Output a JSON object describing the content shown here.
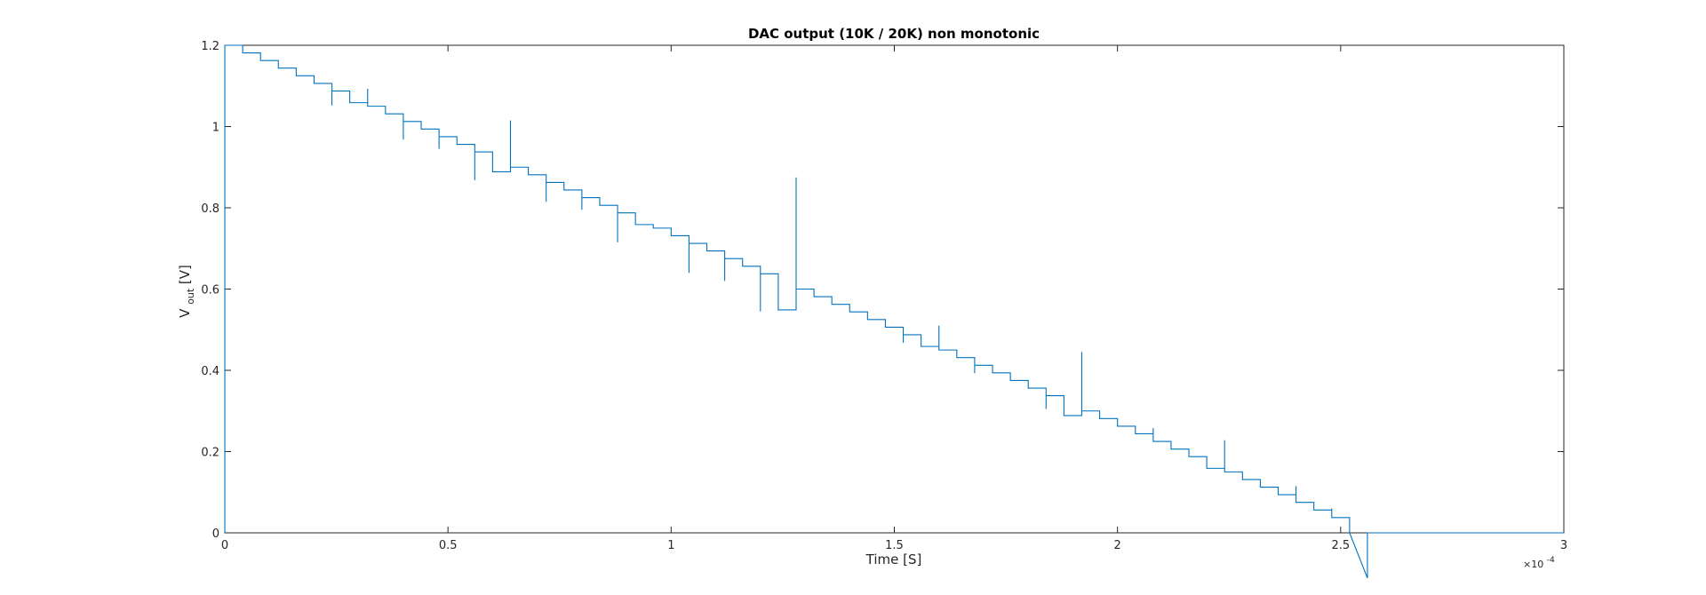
{
  "chart_data": {
    "type": "line",
    "title": "DAC output (10K / 20K) non monotonic",
    "xlabel": "Time [S]",
    "ylabel": {
      "main": "V",
      "subscript": "out",
      "unit": " [V]"
    },
    "x_exponent": {
      "base": "×10",
      "power": "-4"
    },
    "xlim": [
      0,
      3
    ],
    "ylim": [
      0,
      1.2
    ],
    "xticks": [
      0,
      0.5,
      1,
      1.5,
      2,
      2.5,
      3
    ],
    "xtick_labels": [
      "0",
      "0.5",
      "1",
      "1.5",
      "2",
      "2.5",
      "3"
    ],
    "yticks": [
      0,
      0.2,
      0.4,
      0.6,
      0.8,
      1,
      1.2
    ],
    "ytick_labels": [
      "0",
      "0.2",
      "0.4",
      "0.6",
      "0.8",
      "1",
      "1.2"
    ],
    "grid": false,
    "box": true,
    "series": [
      {
        "color": "#0072BD",
        "description": "Staircase from 1.2 V at t=0 down to 0 V at t≈2.56e-4 s, 64 steps of 0.01875 V every 0.04e-4 s, with glitch spikes at code transitions",
        "start_value": 1.2,
        "step_drop": 0.01875,
        "step_width": 0.04,
        "num_steps": 64,
        "level_offsets": [
          {
            "every_steps": 8,
            "offset": -0.01
          },
          {
            "every_steps": 16,
            "offset": -0.02
          },
          {
            "every_steps": 32,
            "offset": -0.04
          },
          {
            "every_steps": 64,
            "offset": -0.06
          }
        ],
        "spikes": [
          {
            "x": 0.08,
            "y": 1.165
          },
          {
            "x": 0.16,
            "y": 1.137
          },
          {
            "x": 0.24,
            "y": 1.052
          },
          {
            "x": 0.32,
            "y": 1.093
          },
          {
            "x": 0.4,
            "y": 0.968
          },
          {
            "x": 0.48,
            "y": 0.945
          },
          {
            "x": 0.56,
            "y": 0.868
          },
          {
            "x": 0.64,
            "y": 1.015
          },
          {
            "x": 0.72,
            "y": 0.815
          },
          {
            "x": 0.8,
            "y": 0.795
          },
          {
            "x": 0.88,
            "y": 0.715
          },
          {
            "x": 0.96,
            "y": 0.752
          },
          {
            "x": 1.04,
            "y": 0.64
          },
          {
            "x": 1.12,
            "y": 0.62
          },
          {
            "x": 1.2,
            "y": 0.545
          },
          {
            "x": 1.28,
            "y": 0.875
          },
          {
            "x": 1.36,
            "y": 0.568
          },
          {
            "x": 1.44,
            "y": 0.545
          },
          {
            "x": 1.52,
            "y": 0.468
          },
          {
            "x": 1.6,
            "y": 0.51
          },
          {
            "x": 1.68,
            "y": 0.393
          },
          {
            "x": 1.76,
            "y": 0.374
          },
          {
            "x": 1.84,
            "y": 0.305
          },
          {
            "x": 1.92,
            "y": 0.445
          },
          {
            "x": 2.0,
            "y": 0.275
          },
          {
            "x": 2.08,
            "y": 0.258
          },
          {
            "x": 2.16,
            "y": 0.19
          },
          {
            "x": 2.24,
            "y": 0.228
          },
          {
            "x": 2.32,
            "y": 0.13
          },
          {
            "x": 2.4,
            "y": 0.115
          },
          {
            "x": 2.48,
            "y": 0.06
          }
        ]
      }
    ]
  }
}
